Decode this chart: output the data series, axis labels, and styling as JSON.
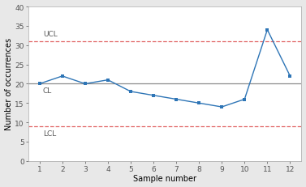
{
  "x": [
    1,
    2,
    3,
    4,
    5,
    6,
    7,
    8,
    9,
    10,
    11,
    12
  ],
  "y": [
    20,
    22,
    20,
    21,
    18,
    17,
    16,
    15,
    14,
    16,
    34,
    22
  ],
  "UCL": 31,
  "CL": 20,
  "LCL": 9,
  "UCL_label": "UCL",
  "CL_label": "CL",
  "LCL_label": "LCL",
  "xlabel": "Sample number",
  "ylabel": "Number of occurrences",
  "ylim": [
    0,
    40
  ],
  "yticks": [
    0,
    5,
    10,
    15,
    20,
    25,
    30,
    35,
    40
  ],
  "xticks": [
    1,
    2,
    3,
    4,
    5,
    6,
    7,
    8,
    9,
    10,
    11,
    12
  ],
  "line_color": "#2e75b6",
  "marker_color": "#2e75b6",
  "cl_color": "#8c8c8c",
  "ucl_lcl_color": "#e06060",
  "bg_color": "#e8e8e8",
  "plot_bg_color": "#ffffff",
  "label_color": "#555555",
  "tick_color": "#555555",
  "spine_color": "#aaaaaa"
}
